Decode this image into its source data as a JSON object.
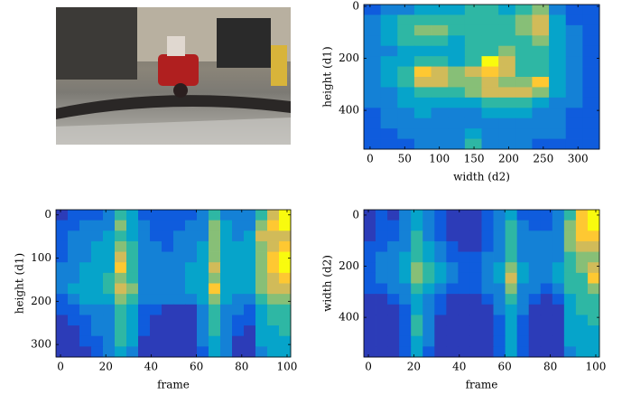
{
  "chart_data": [
    {
      "type": "heatmap",
      "xlabel": "width (d2)",
      "ylabel": "height (d1)",
      "xlim": [
        -9,
        331
      ],
      "ylim": [
        -7,
        549
      ],
      "yinverted": true,
      "xticks": [
        0,
        50,
        100,
        150,
        200,
        250,
        300
      ],
      "yticks": [
        0,
        200,
        400
      ],
      "zlim": [
        0,
        9
      ],
      "colormap": [
        "#352a87",
        "#2c3cb8",
        "#0f5cdd",
        "#1481d6",
        "#06a4ca",
        "#2eb7a4",
        "#87bf77",
        "#d1bb59",
        "#fec832",
        "#f9fb0e"
      ],
      "z": [
        [
          2,
          3,
          3,
          4,
          4,
          4,
          5,
          5,
          4,
          5,
          6,
          3,
          2,
          2
        ],
        [
          3,
          4,
          5,
          5,
          5,
          5,
          5,
          5,
          5,
          6,
          7,
          4,
          2,
          2
        ],
        [
          3,
          4,
          5,
          6,
          6,
          5,
          5,
          5,
          5,
          6,
          7,
          4,
          3,
          2
        ],
        [
          3,
          4,
          5,
          5,
          5,
          4,
          5,
          5,
          5,
          5,
          6,
          4,
          3,
          2
        ],
        [
          3,
          3,
          4,
          4,
          4,
          4,
          5,
          5,
          6,
          5,
          5,
          4,
          3,
          2
        ],
        [
          3,
          4,
          4,
          5,
          5,
          4,
          5,
          9,
          7,
          5,
          5,
          4,
          3,
          2
        ],
        [
          3,
          4,
          5,
          8,
          7,
          6,
          7,
          8,
          7,
          5,
          5,
          4,
          3,
          2
        ],
        [
          3,
          4,
          5,
          7,
          7,
          6,
          6,
          7,
          6,
          6,
          8,
          4,
          3,
          2
        ],
        [
          3,
          3,
          4,
          5,
          5,
          5,
          6,
          7,
          7,
          7,
          6,
          4,
          3,
          2
        ],
        [
          3,
          3,
          4,
          4,
          4,
          4,
          4,
          5,
          5,
          5,
          4,
          3,
          3,
          2
        ],
        [
          2,
          3,
          3,
          4,
          3,
          3,
          3,
          4,
          4,
          4,
          3,
          3,
          2,
          2
        ],
        [
          2,
          3,
          3,
          3,
          3,
          3,
          3,
          3,
          3,
          3,
          3,
          3,
          2,
          2
        ],
        [
          2,
          2,
          3,
          3,
          3,
          3,
          4,
          3,
          3,
          3,
          3,
          3,
          2,
          2
        ],
        [
          2,
          2,
          2,
          3,
          3,
          3,
          5,
          3,
          3,
          3,
          2,
          2,
          2,
          2
        ]
      ]
    },
    {
      "type": "heatmap",
      "xlabel": "frame",
      "ylabel": "height (d1)",
      "xlim": [
        -2,
        101.6
      ],
      "ylim": [
        -12,
        329
      ],
      "yinverted": true,
      "xticks": [
        0,
        20,
        40,
        60,
        80,
        100
      ],
      "yticks": [
        0,
        100,
        200,
        300
      ],
      "zlim": [
        0,
        9
      ],
      "colormap": [
        "#352a87",
        "#2c3cb8",
        "#0f5cdd",
        "#1481d6",
        "#06a4ca",
        "#2eb7a4",
        "#87bf77",
        "#d1bb59",
        "#fec832",
        "#f9fb0e"
      ],
      "z": [
        [
          1,
          2,
          2,
          2,
          3,
          5,
          4,
          2,
          2,
          2,
          2,
          2,
          3,
          5,
          3,
          3,
          3,
          5,
          7,
          9
        ],
        [
          2,
          2,
          3,
          3,
          3,
          6,
          4,
          3,
          2,
          2,
          2,
          3,
          3,
          6,
          4,
          3,
          3,
          6,
          8,
          9
        ],
        [
          2,
          3,
          3,
          3,
          4,
          5,
          4,
          3,
          2,
          2,
          3,
          3,
          3,
          6,
          4,
          3,
          4,
          7,
          7,
          7
        ],
        [
          2,
          3,
          3,
          4,
          4,
          6,
          5,
          3,
          3,
          2,
          3,
          3,
          4,
          6,
          4,
          4,
          4,
          6,
          7,
          8
        ],
        [
          2,
          3,
          3,
          4,
          4,
          7,
          5,
          3,
          3,
          3,
          3,
          3,
          4,
          6,
          4,
          4,
          4,
          6,
          8,
          9
        ],
        [
          3,
          3,
          4,
          4,
          4,
          8,
          5,
          3,
          3,
          3,
          3,
          4,
          4,
          7,
          4,
          4,
          4,
          6,
          8,
          9
        ],
        [
          3,
          3,
          4,
          4,
          5,
          6,
          5,
          3,
          3,
          3,
          3,
          4,
          4,
          6,
          4,
          4,
          4,
          6,
          7,
          8
        ],
        [
          3,
          4,
          4,
          4,
          5,
          7,
          6,
          3,
          3,
          3,
          3,
          4,
          4,
          8,
          4,
          4,
          4,
          6,
          7,
          7
        ],
        [
          2,
          3,
          4,
          4,
          4,
          6,
          5,
          3,
          3,
          3,
          3,
          3,
          4,
          6,
          4,
          3,
          3,
          5,
          6,
          6
        ],
        [
          2,
          2,
          3,
          3,
          3,
          5,
          4,
          2,
          2,
          1,
          1,
          1,
          3,
          5,
          3,
          3,
          2,
          4,
          5,
          5
        ],
        [
          1,
          2,
          2,
          3,
          3,
          5,
          4,
          2,
          1,
          1,
          1,
          1,
          3,
          5,
          3,
          2,
          2,
          4,
          5,
          5
        ],
        [
          1,
          1,
          2,
          3,
          3,
          5,
          4,
          2,
          1,
          1,
          1,
          1,
          3,
          5,
          3,
          2,
          1,
          4,
          4,
          5
        ],
        [
          1,
          1,
          2,
          2,
          3,
          5,
          4,
          1,
          1,
          1,
          1,
          1,
          3,
          4,
          3,
          1,
          1,
          4,
          4,
          4
        ],
        [
          1,
          1,
          1,
          2,
          3,
          4,
          3,
          1,
          1,
          1,
          1,
          1,
          2,
          4,
          3,
          1,
          1,
          3,
          4,
          4
        ]
      ]
    },
    {
      "type": "heatmap",
      "xlabel": "frame",
      "ylabel": "width (d2)",
      "xlim": [
        -2,
        101.6
      ],
      "ylim": [
        -21,
        555
      ],
      "yinverted": true,
      "xticks": [
        0,
        20,
        40,
        60,
        80,
        100
      ],
      "yticks": [
        0,
        200,
        400
      ],
      "zlim": [
        0,
        9
      ],
      "colormap": [
        "#352a87",
        "#2c3cb8",
        "#0f5cdd",
        "#1481d6",
        "#06a4ca",
        "#2eb7a4",
        "#87bf77",
        "#d1bb59",
        "#fec832",
        "#f9fb0e"
      ],
      "z": [
        [
          1,
          2,
          1,
          3,
          4,
          3,
          2,
          1,
          1,
          1,
          2,
          3,
          4,
          2,
          2,
          2,
          3,
          5,
          8,
          9
        ],
        [
          1,
          2,
          2,
          3,
          4,
          3,
          2,
          1,
          1,
          1,
          2,
          3,
          5,
          3,
          2,
          2,
          3,
          6,
          8,
          9
        ],
        [
          1,
          2,
          2,
          3,
          5,
          3,
          2,
          1,
          1,
          1,
          2,
          3,
          5,
          3,
          3,
          3,
          3,
          6,
          8,
          8
        ],
        [
          2,
          2,
          3,
          3,
          5,
          4,
          3,
          2,
          1,
          1,
          2,
          3,
          5,
          3,
          3,
          3,
          3,
          6,
          7,
          7
        ],
        [
          2,
          3,
          3,
          4,
          5,
          4,
          3,
          2,
          2,
          2,
          3,
          3,
          5,
          3,
          3,
          3,
          3,
          5,
          6,
          6
        ],
        [
          2,
          3,
          3,
          4,
          6,
          5,
          4,
          3,
          2,
          2,
          3,
          4,
          6,
          4,
          3,
          3,
          4,
          5,
          6,
          7
        ],
        [
          2,
          3,
          3,
          4,
          6,
          5,
          4,
          3,
          2,
          2,
          3,
          4,
          7,
          4,
          3,
          3,
          4,
          5,
          5,
          8
        ],
        [
          2,
          2,
          3,
          3,
          5,
          4,
          3,
          2,
          2,
          2,
          3,
          3,
          6,
          3,
          3,
          2,
          3,
          5,
          5,
          6
        ],
        [
          1,
          1,
          2,
          3,
          4,
          3,
          2,
          1,
          1,
          1,
          2,
          3,
          5,
          3,
          2,
          1,
          2,
          4,
          5,
          5
        ],
        [
          1,
          1,
          1,
          2,
          4,
          3,
          2,
          1,
          1,
          1,
          1,
          3,
          4,
          3,
          1,
          1,
          1,
          4,
          5,
          5
        ],
        [
          1,
          1,
          1,
          2,
          5,
          3,
          1,
          1,
          1,
          1,
          1,
          2,
          4,
          2,
          1,
          1,
          1,
          4,
          4,
          5
        ],
        [
          1,
          1,
          1,
          2,
          5,
          3,
          1,
          1,
          1,
          1,
          1,
          2,
          4,
          2,
          1,
          1,
          1,
          4,
          4,
          4
        ],
        [
          1,
          1,
          1,
          2,
          4,
          3,
          1,
          1,
          1,
          1,
          1,
          2,
          4,
          2,
          1,
          1,
          1,
          4,
          4,
          4
        ],
        [
          1,
          1,
          1,
          2,
          4,
          2,
          1,
          1,
          1,
          1,
          1,
          2,
          4,
          2,
          1,
          1,
          1,
          3,
          4,
          4
        ]
      ]
    }
  ]
}
